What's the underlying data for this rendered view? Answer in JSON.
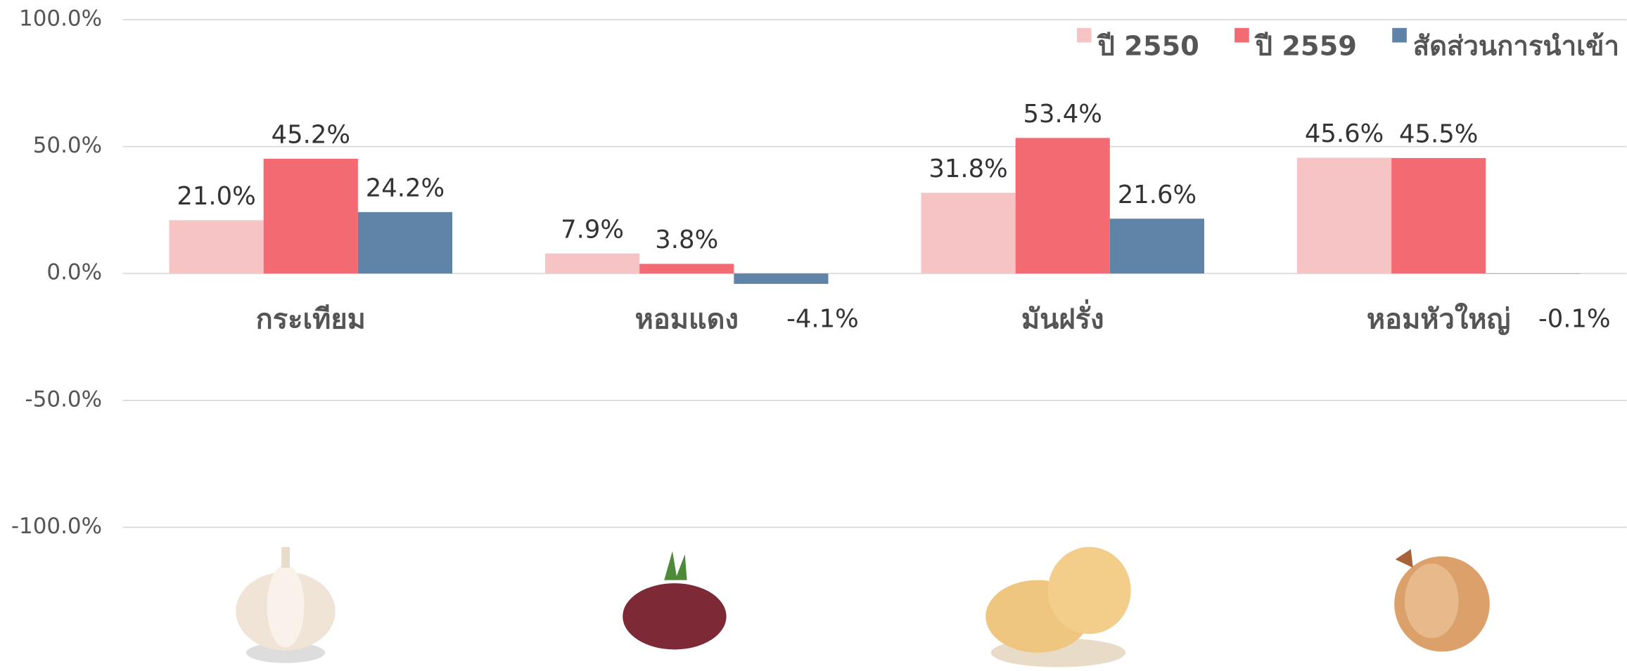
{
  "chart_data": {
    "type": "bar",
    "categories": [
      "กระเทียม",
      "หอมแดง",
      "มันฝรั่ง",
      "หอมหัวใหญ่"
    ],
    "series": [
      {
        "name": "ปี 2550",
        "color": "#f7c4c6",
        "values": [
          21.0,
          7.9,
          31.8,
          45.6
        ],
        "value_labels": [
          "21.0%",
          "7.9%",
          "31.8%",
          "45.6%"
        ]
      },
      {
        "name": "ปี 2559",
        "color": "#f26b73",
        "values": [
          45.2,
          3.8,
          53.4,
          45.5
        ],
        "value_labels": [
          "45.2%",
          "3.8%",
          "53.4%",
          "45.5%"
        ]
      },
      {
        "name": "สัดส่วนการนำเข้า",
        "color": "#5f84a8",
        "values": [
          24.2,
          -4.1,
          21.6,
          -0.1
        ],
        "value_labels": [
          "24.2%",
          "-4.1%",
          "21.6%",
          "-0.1%"
        ]
      }
    ],
    "ylim": [
      -100,
      100
    ],
    "yticks": [
      {
        "value": 100,
        "label": "100.0%"
      },
      {
        "value": 50,
        "label": "50.0%"
      },
      {
        "value": 0,
        "label": "0.0%"
      },
      {
        "value": -50,
        "label": "-50.0%"
      },
      {
        "value": -100,
        "label": "-100.0%"
      }
    ],
    "grid": true,
    "legend": "top-right"
  }
}
